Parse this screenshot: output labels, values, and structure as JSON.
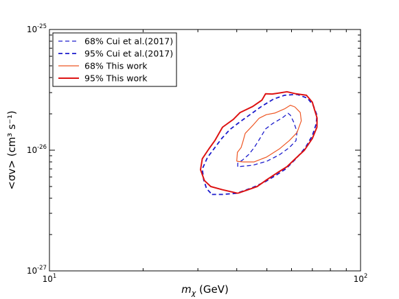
{
  "chart_data": {
    "type": "line",
    "xlabel": "m_χ (GeV)",
    "xlabel_parts": {
      "var": "m",
      "sub": "χ",
      "unit": " (GeV)"
    },
    "ylabel": "<σv> (cm³ s⁻¹)",
    "xscale": "log",
    "yscale": "log",
    "xlim": [
      10,
      100
    ],
    "ylim": [
      1e-27,
      1e-25
    ],
    "x_ticks": [
      {
        "value": 10,
        "base": "10",
        "exp": "1"
      },
      {
        "value": 100,
        "base": "10",
        "exp": "2"
      }
    ],
    "y_ticks": [
      {
        "value": 1e-27,
        "base": "10",
        "exp": "-27"
      },
      {
        "value": 1e-26,
        "base": "10",
        "exp": "-26"
      },
      {
        "value": 1e-25,
        "base": "10",
        "exp": "-25"
      }
    ],
    "legend_position": "top-left",
    "grid": false,
    "series": [
      {
        "name": "68% Cui et al.(2017)",
        "color": "#1a1acc",
        "dash": "dashed",
        "width": 1.3,
        "points": [
          [
            40.3,
            7.3e-27
          ],
          [
            40.3,
            7.8e-27
          ],
          [
            41.8,
            8.3e-27
          ],
          [
            43.7,
            9.2e-27
          ],
          [
            45.5,
            1.05e-26
          ],
          [
            47.5,
            1.25e-26
          ],
          [
            49.5,
            1.5e-26
          ],
          [
            52.5,
            1.68e-26
          ],
          [
            56.0,
            1.85e-26
          ],
          [
            58.5,
            2.02e-26
          ],
          [
            59.5,
            1.95e-26
          ],
          [
            61.0,
            1.7e-26
          ],
          [
            62.5,
            1.42e-26
          ],
          [
            62.0,
            1.2e-26
          ],
          [
            59.0,
            1.05e-26
          ],
          [
            55.0,
            9.2e-27
          ],
          [
            50.0,
            8.1e-27
          ],
          [
            45.0,
            7.5e-27
          ],
          [
            40.3,
            7.3e-27
          ]
        ]
      },
      {
        "name": "95% Cui et al.(2017)",
        "color": "#1a1acc",
        "dash": "dashed",
        "width": 1.8,
        "points": [
          [
            33.3,
            4.3e-27
          ],
          [
            36.0,
            4.3e-27
          ],
          [
            40.0,
            4.4e-27
          ],
          [
            45.0,
            4.9e-27
          ],
          [
            49.5,
            5.5e-27
          ],
          [
            53.5,
            6.2e-27
          ],
          [
            57.5,
            7e-27
          ],
          [
            62.0,
            8.5e-27
          ],
          [
            66.5,
            1.05e-26
          ],
          [
            70.0,
            1.32e-26
          ],
          [
            72.0,
            1.65e-26
          ],
          [
            72.4,
            1.95e-26
          ],
          [
            70.5,
            2.35e-26
          ],
          [
            67.5,
            2.7e-26
          ],
          [
            62.5,
            2.9e-26
          ],
          [
            57.0,
            2.85e-26
          ],
          [
            52.5,
            2.65e-26
          ],
          [
            48.0,
            2.3e-26
          ],
          [
            44.5,
            2e-26
          ],
          [
            41.0,
            1.72e-26
          ],
          [
            38.0,
            1.48e-26
          ],
          [
            35.8,
            1.25e-26
          ],
          [
            34.0,
            1.05e-26
          ],
          [
            32.2,
            8.7e-27
          ],
          [
            31.0,
            7e-27
          ],
          [
            31.3,
            5.7e-27
          ],
          [
            32.0,
            4.8e-27
          ],
          [
            33.3,
            4.3e-27
          ]
        ]
      },
      {
        "name": "68% This work",
        "color": "#ee5522",
        "dash": "solid",
        "width": 1.2,
        "points": [
          [
            40.0,
            8.1e-27
          ],
          [
            40.2,
            9.6e-27
          ],
          [
            41.3,
            1.05e-26
          ],
          [
            41.8,
            1.16e-26
          ],
          [
            42.6,
            1.38e-26
          ],
          [
            45.0,
            1.6e-26
          ],
          [
            47.2,
            1.84e-26
          ],
          [
            49.8,
            1.97e-26
          ],
          [
            53.0,
            2.03e-26
          ],
          [
            57.0,
            2.2e-26
          ],
          [
            59.5,
            2.36e-26
          ],
          [
            61.5,
            2.28e-26
          ],
          [
            64.0,
            2.05e-26
          ],
          [
            64.5,
            1.75e-26
          ],
          [
            62.5,
            1.4e-26
          ],
          [
            59.0,
            1.2e-26
          ],
          [
            55.0,
            1.03e-26
          ],
          [
            50.0,
            8.8e-27
          ],
          [
            45.5,
            8e-27
          ],
          [
            42.0,
            8e-27
          ],
          [
            40.0,
            8.1e-27
          ]
        ]
      },
      {
        "name": "95% This work",
        "color": "#dd1111",
        "dash": "solid",
        "width": 2.0,
        "points": [
          [
            40.3,
            4.4e-27
          ],
          [
            43.5,
            4.7e-27
          ],
          [
            46.5,
            5e-27
          ],
          [
            50.0,
            5.7e-27
          ],
          [
            54.0,
            6.5e-27
          ],
          [
            58.0,
            7.3e-27
          ],
          [
            62.0,
            8.6e-27
          ],
          [
            66.0,
            1e-26
          ],
          [
            70.0,
            1.25e-26
          ],
          [
            72.4,
            1.55e-26
          ],
          [
            72.5,
            1.85e-26
          ],
          [
            71.0,
            2.2e-26
          ],
          [
            70.0,
            2.5e-26
          ],
          [
            67.0,
            2.85e-26
          ],
          [
            62.0,
            2.93e-26
          ],
          [
            58.0,
            3.05e-26
          ],
          [
            55.0,
            2.98e-26
          ],
          [
            52.0,
            2.92e-26
          ],
          [
            49.5,
            2.93e-26
          ],
          [
            48.2,
            2.6e-26
          ],
          [
            45.0,
            2.3e-26
          ],
          [
            41.0,
            2.05e-26
          ],
          [
            39.0,
            1.8e-26
          ],
          [
            36.0,
            1.55e-26
          ],
          [
            34.0,
            1.2e-26
          ],
          [
            32.5,
            1.02e-26
          ],
          [
            31.0,
            8.5e-27
          ],
          [
            30.6,
            6.9e-27
          ],
          [
            31.5,
            5.6e-27
          ],
          [
            33.0,
            5e-27
          ],
          [
            36.0,
            4.7e-27
          ],
          [
            40.3,
            4.4e-27
          ]
        ]
      }
    ]
  }
}
